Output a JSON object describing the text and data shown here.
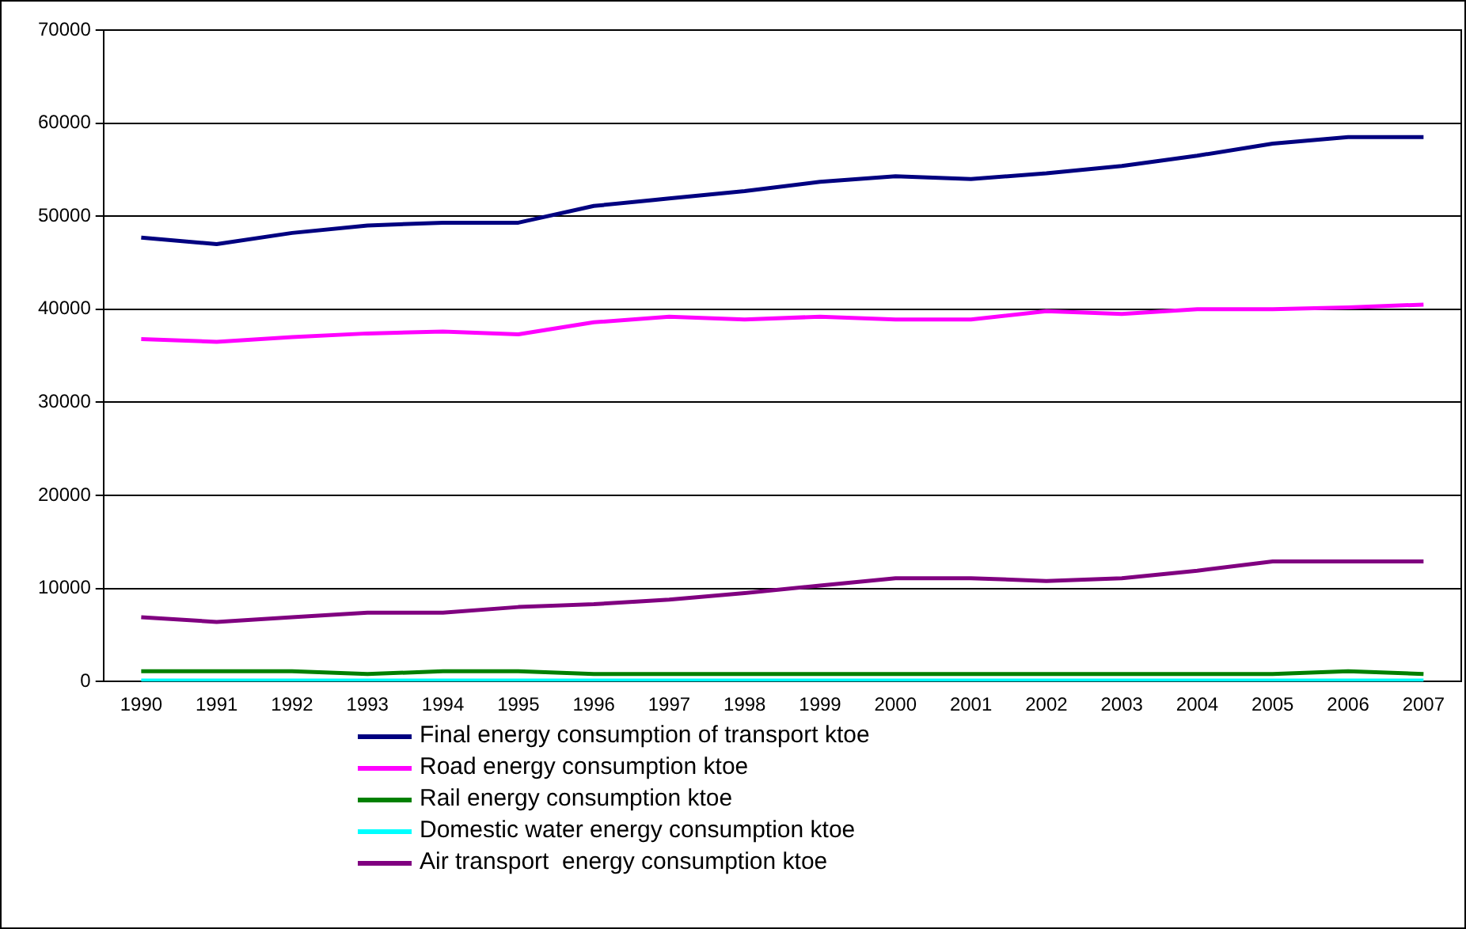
{
  "chart_data": {
    "type": "line",
    "categories": [
      "1990",
      "1991",
      "1992",
      "1993",
      "1994",
      "1995",
      "1996",
      "1997",
      "1998",
      "1999",
      "2000",
      "2001",
      "2002",
      "2003",
      "2004",
      "2005",
      "2006",
      "2007"
    ],
    "series": [
      {
        "name": "Final energy consumption of transport ktoe",
        "color": "#000080",
        "values": [
          47700,
          47000,
          48200,
          49000,
          49300,
          49300,
          51100,
          51900,
          52700,
          53700,
          54300,
          54000,
          54600,
          55400,
          56500,
          57800,
          58500,
          58500
        ]
      },
      {
        "name": "Road energy consumption ktoe",
        "color": "#ff00ff",
        "values": [
          36800,
          36500,
          37000,
          37400,
          37600,
          37300,
          38600,
          39200,
          38900,
          39200,
          38900,
          38900,
          39800,
          39500,
          40000,
          40000,
          40200,
          40500
        ]
      },
      {
        "name": "Rail energy consumption ktoe",
        "color": "#008000",
        "values": [
          1100,
          1100,
          1100,
          800,
          1100,
          1100,
          800,
          800,
          800,
          800,
          800,
          800,
          800,
          800,
          800,
          800,
          1100,
          800
        ]
      },
      {
        "name": "Domestic water energy consumption ktoe",
        "color": "#00ffff",
        "values": [
          100,
          100,
          100,
          100,
          100,
          100,
          100,
          100,
          100,
          100,
          100,
          100,
          100,
          100,
          100,
          100,
          100,
          100
        ]
      },
      {
        "name": "Air transport  energy consumption ktoe",
        "color": "#800080",
        "values": [
          6900,
          6400,
          6900,
          7400,
          7400,
          8000,
          8300,
          8800,
          9500,
          10300,
          11100,
          11100,
          10800,
          11100,
          11900,
          12900,
          12900,
          12900
        ]
      }
    ],
    "ylim": [
      0,
      70000
    ],
    "yticks": [
      0,
      10000,
      20000,
      30000,
      40000,
      50000,
      60000,
      70000
    ],
    "grid": "y",
    "legend": "bottom",
    "marker": "none",
    "line_style": "solid"
  }
}
